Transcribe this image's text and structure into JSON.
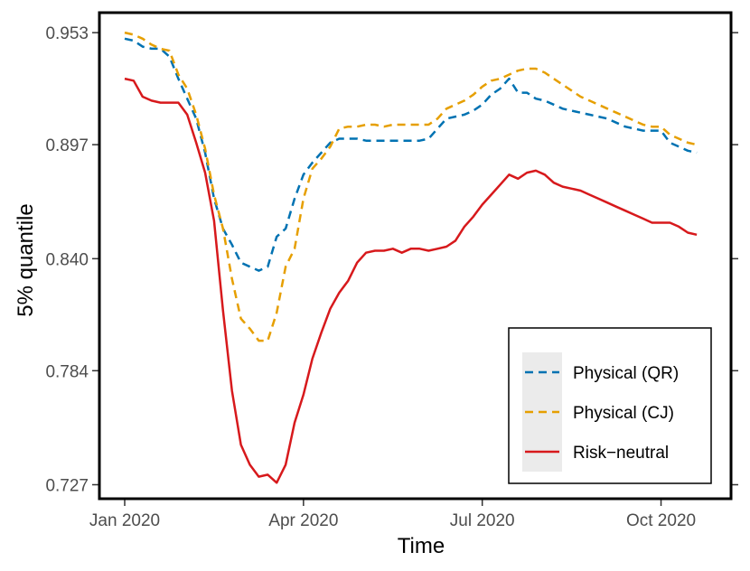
{
  "chart_data": {
    "type": "line",
    "xlabel": "Time",
    "ylabel": "5% quantile",
    "xlim": [
      0,
      325
    ],
    "ylim": [
      0.72,
      0.963
    ],
    "x_ticks": [
      {
        "value": 0,
        "label": "Jan 2020"
      },
      {
        "value": 100,
        "label": "Apr 2020"
      },
      {
        "value": 200,
        "label": "Jul 2020"
      },
      {
        "value": 300,
        "label": "Oct 2020"
      }
    ],
    "y_ticks": [
      {
        "value": 0.727,
        "label": "0.727"
      },
      {
        "value": 0.784,
        "label": "0.784"
      },
      {
        "value": 0.84,
        "label": "0.840"
      },
      {
        "value": 0.897,
        "label": "0.897"
      },
      {
        "value": 0.953,
        "label": "0.953"
      }
    ],
    "x": [
      0,
      5,
      10,
      15,
      20,
      25,
      30,
      35,
      40,
      45,
      50,
      55,
      60,
      65,
      70,
      75,
      80,
      85,
      90,
      95,
      100,
      105,
      110,
      115,
      120,
      125,
      130,
      135,
      140,
      145,
      150,
      155,
      160,
      165,
      170,
      175,
      180,
      185,
      190,
      195,
      200,
      205,
      210,
      215,
      220,
      225,
      230,
      235,
      240,
      245,
      250,
      255,
      260,
      265,
      270,
      275,
      280,
      285,
      290,
      295,
      300,
      305,
      310,
      315,
      320
    ],
    "series": [
      {
        "name": "Physical (QR)",
        "color": "#0072B2",
        "dash": "dashed",
        "values": [
          0.95,
          0.949,
          0.946,
          0.945,
          0.945,
          0.941,
          0.93,
          0.92,
          0.91,
          0.893,
          0.87,
          0.855,
          0.847,
          0.838,
          0.836,
          0.834,
          0.836,
          0.851,
          0.855,
          0.87,
          0.882,
          0.888,
          0.893,
          0.898,
          0.9,
          0.9,
          0.9,
          0.899,
          0.899,
          0.899,
          0.899,
          0.899,
          0.899,
          0.899,
          0.9,
          0.905,
          0.91,
          0.911,
          0.912,
          0.914,
          0.917,
          0.922,
          0.925,
          0.93,
          0.923,
          0.923,
          0.92,
          0.919,
          0.917,
          0.915,
          0.914,
          0.913,
          0.912,
          0.911,
          0.91,
          0.908,
          0.906,
          0.905,
          0.904,
          0.904,
          0.904,
          0.898,
          0.896,
          0.894,
          0.893
        ]
      },
      {
        "name": "Physical (CJ)",
        "color": "#E69F00",
        "dash": "dashed",
        "values": [
          0.953,
          0.952,
          0.95,
          0.947,
          0.945,
          0.944,
          0.932,
          0.925,
          0.912,
          0.895,
          0.872,
          0.855,
          0.83,
          0.81,
          0.805,
          0.799,
          0.799,
          0.813,
          0.836,
          0.845,
          0.87,
          0.885,
          0.89,
          0.896,
          0.905,
          0.906,
          0.906,
          0.907,
          0.907,
          0.906,
          0.907,
          0.907,
          0.907,
          0.907,
          0.907,
          0.91,
          0.915,
          0.917,
          0.919,
          0.922,
          0.926,
          0.929,
          0.93,
          0.932,
          0.934,
          0.935,
          0.935,
          0.933,
          0.93,
          0.927,
          0.924,
          0.921,
          0.919,
          0.917,
          0.915,
          0.913,
          0.911,
          0.909,
          0.907,
          0.906,
          0.906,
          0.902,
          0.9,
          0.898,
          0.897
        ]
      },
      {
        "name": "Risk−neutral",
        "color": "#D7191C",
        "dash": "solid",
        "values": [
          0.93,
          0.929,
          0.921,
          0.919,
          0.918,
          0.918,
          0.918,
          0.912,
          0.898,
          0.883,
          0.859,
          0.814,
          0.774,
          0.747,
          0.737,
          0.731,
          0.732,
          0.728,
          0.737,
          0.758,
          0.772,
          0.79,
          0.803,
          0.815,
          0.823,
          0.829,
          0.838,
          0.843,
          0.844,
          0.844,
          0.845,
          0.843,
          0.845,
          0.845,
          0.844,
          0.845,
          0.846,
          0.849,
          0.856,
          0.861,
          0.867,
          0.872,
          0.877,
          0.882,
          0.88,
          0.883,
          0.884,
          0.882,
          0.878,
          0.876,
          0.875,
          0.874,
          0.872,
          0.87,
          0.868,
          0.866,
          0.864,
          0.862,
          0.86,
          0.858,
          0.858,
          0.858,
          0.856,
          0.853,
          0.852
        ]
      }
    ],
    "legend": {
      "position": "bottom-right",
      "entries": [
        "Physical (QR)",
        "Physical (CJ)",
        "Risk−neutral"
      ]
    }
  }
}
